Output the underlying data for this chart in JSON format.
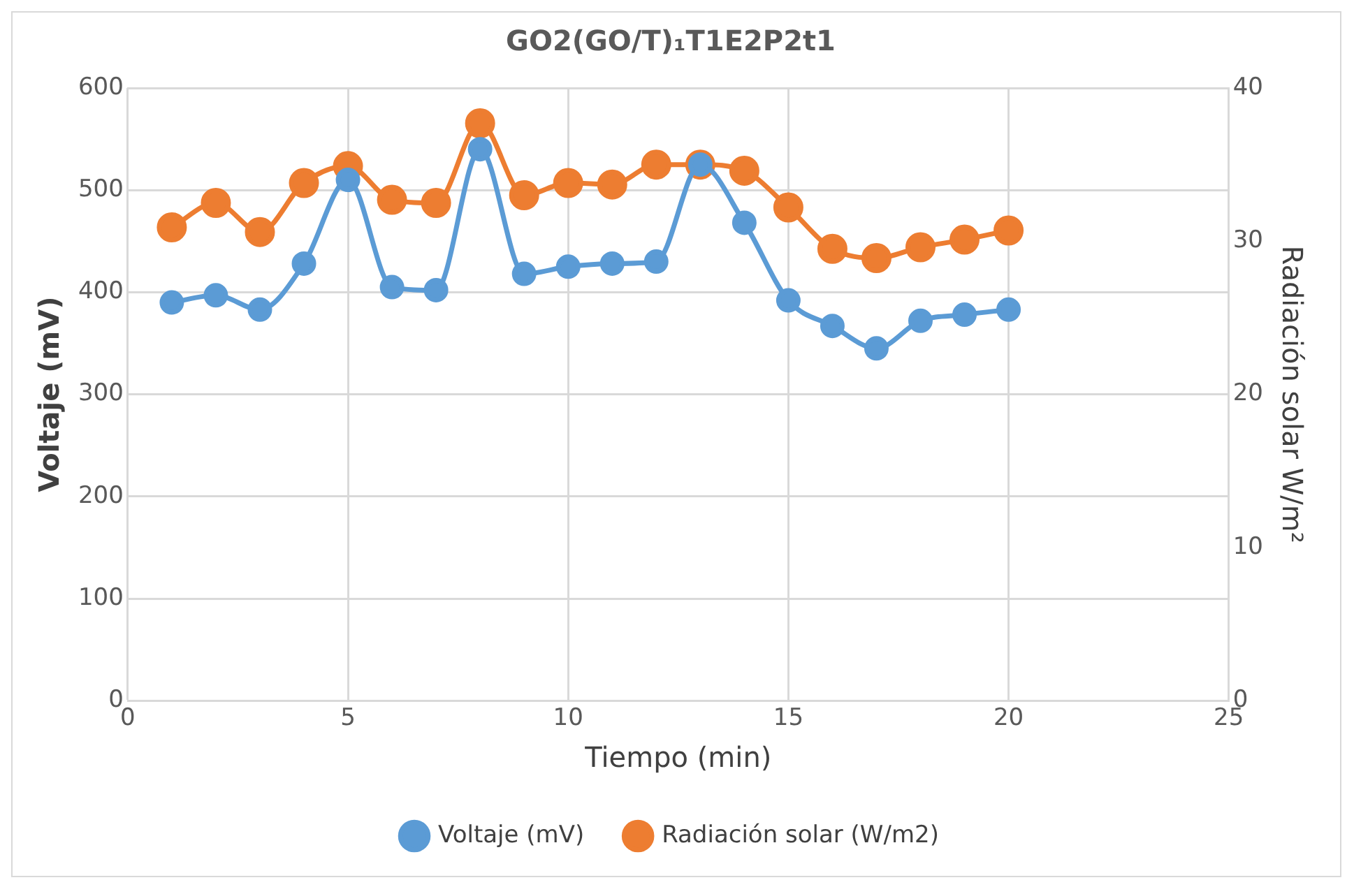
{
  "chart_data": {
    "type": "line",
    "title": "GO2(GO/T)₁T1E2P2t1",
    "xlabel": "Tiempo (min)",
    "ylabel": "Voltaje (mV)",
    "y2label": "Radiación solar W/m²",
    "x": [
      1,
      2,
      3,
      4,
      5,
      6,
      7,
      8,
      9,
      10,
      11,
      12,
      13,
      14,
      15,
      16,
      17,
      18,
      19,
      20
    ],
    "series": [
      {
        "name": "Voltaje (mV)",
        "color": "#5b9bd5",
        "values": [
          390,
          397,
          383,
          428,
          510,
          405,
          402,
          540,
          418,
          425,
          428,
          430,
          525,
          468,
          392,
          367,
          345,
          372,
          378,
          383
        ]
      },
      {
        "name": "Radiación solar (W/m2)",
        "color": "#ed7d31",
        "axis": "y2",
        "values": [
          30.9,
          32.5,
          30.6,
          33.8,
          34.9,
          32.7,
          32.5,
          37.7,
          33.0,
          33.8,
          33.7,
          35.0,
          35.0,
          34.6,
          32.2,
          29.5,
          28.9,
          29.6,
          30.1,
          30.7
        ]
      }
    ],
    "xlim": [
      0,
      25
    ],
    "xticks": [
      0,
      5,
      10,
      15,
      20,
      25
    ],
    "ylim": [
      0,
      600
    ],
    "yticks": [
      0,
      100,
      200,
      300,
      400,
      500,
      600
    ],
    "y2lim": [
      0,
      40
    ],
    "y2ticks": [
      0,
      10,
      20,
      30,
      40
    ],
    "grid": true,
    "legend": "bottom",
    "marker": "circle",
    "line_style": "solid"
  }
}
